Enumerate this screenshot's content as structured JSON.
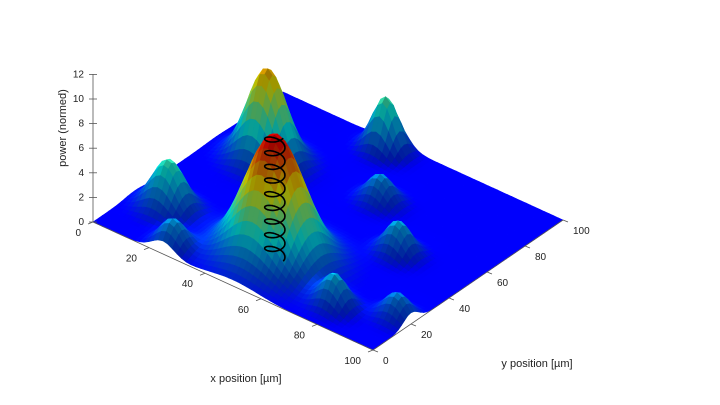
{
  "chart_data": {
    "type": "surface",
    "title": "",
    "xlabel": "x position [µm]",
    "ylabel": "y position  [µm]",
    "zlabel": "power (normed)",
    "xlim": [
      0,
      100
    ],
    "ylim": [
      0,
      100
    ],
    "zlim": [
      0,
      12
    ],
    "x_ticks": [
      "0",
      "20",
      "40",
      "60",
      "80",
      "100"
    ],
    "y_ticks": [
      "0",
      "20",
      "40",
      "60",
      "80",
      "100"
    ],
    "z_ticks": [
      "0",
      "2",
      "4",
      "6",
      "8",
      "10",
      "12"
    ],
    "colormap": "jet",
    "grid": false,
    "peaks": [
      {
        "x": 50,
        "y": 22,
        "height": 10.0,
        "width": 9
      },
      {
        "x": 12,
        "y": 22,
        "height": 4.0,
        "width": 5
      },
      {
        "x": 25,
        "y": 5,
        "height": 2.3,
        "width": 4
      },
      {
        "x": 78,
        "y": 12,
        "height": 2.6,
        "width": 4
      },
      {
        "x": 95,
        "y": 20,
        "height": 2.0,
        "width": 4
      },
      {
        "x": 18,
        "y": 65,
        "height": 7.5,
        "width": 6
      },
      {
        "x": 75,
        "y": 50,
        "height": 2.6,
        "width": 4
      },
      {
        "x": 55,
        "y": 70,
        "height": 2.2,
        "width": 4
      },
      {
        "x": 40,
        "y": 95,
        "height": 4.3,
        "width": 4
      }
    ],
    "helix": {
      "x": 50,
      "y": 22,
      "radius": 3,
      "z_bottom": 0,
      "z_top": 10,
      "color": "#000000"
    }
  }
}
